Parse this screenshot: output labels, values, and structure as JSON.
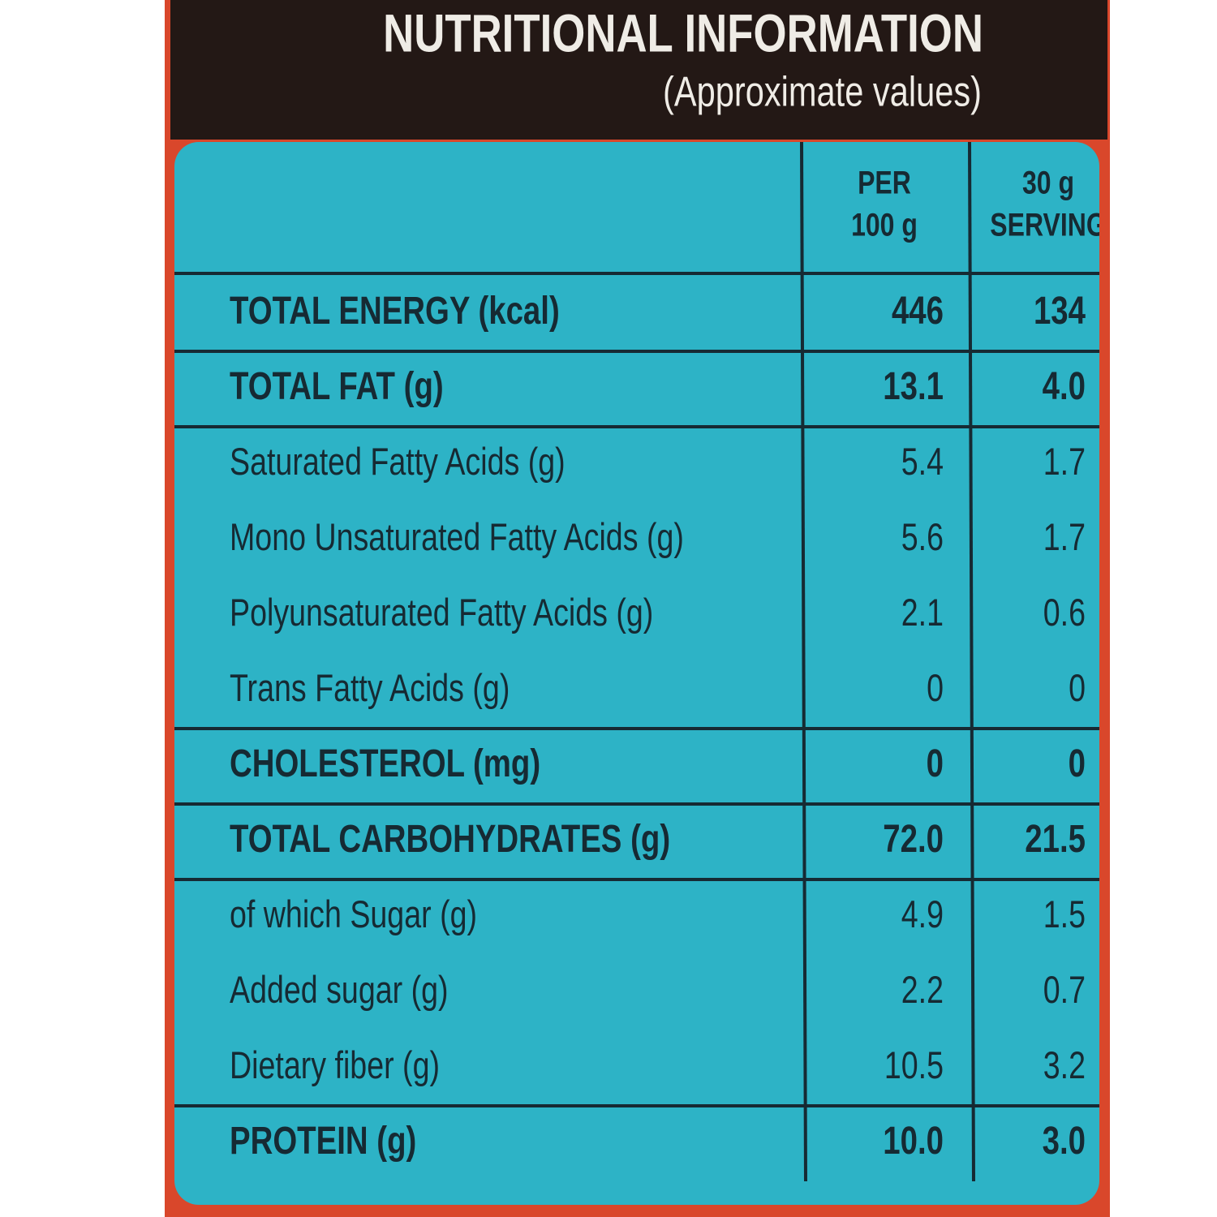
{
  "header": {
    "title": "NUTRITIONAL INFORMATION",
    "subtitle": "(Approximate values)"
  },
  "table": {
    "column_headers": [
      [
        "PER",
        "100 g"
      ],
      [
        "30 g",
        "SERVING"
      ]
    ],
    "groups": [
      [
        {
          "label": "TOTAL ENERGY (kcal)",
          "per_100g": "446",
          "per_serving": "134",
          "bold": true
        }
      ],
      [
        {
          "label": "TOTAL FAT (g)",
          "per_100g": "13.1",
          "per_serving": "4.0",
          "bold": true
        }
      ],
      [
        {
          "label": "Saturated Fatty Acids (g)",
          "per_100g": "5.4",
          "per_serving": "1.7",
          "bold": false
        },
        {
          "label": "Mono Unsaturated Fatty Acids (g)",
          "per_100g": "5.6",
          "per_serving": "1.7",
          "bold": false
        },
        {
          "label": "Polyunsaturated Fatty Acids (g)",
          "per_100g": "2.1",
          "per_serving": "0.6",
          "bold": false
        },
        {
          "label": "Trans Fatty Acids (g)",
          "per_100g": "0",
          "per_serving": "0",
          "bold": false
        }
      ],
      [
        {
          "label": "CHOLESTEROL (mg)",
          "per_100g": "0",
          "per_serving": "0",
          "bold": true
        }
      ],
      [
        {
          "label": "TOTAL CARBOHYDRATES (g)",
          "per_100g": "72.0",
          "per_serving": "21.5",
          "bold": true
        }
      ],
      [
        {
          "label": "of which Sugar (g)",
          "per_100g": "4.9",
          "per_serving": "1.5",
          "bold": false
        },
        {
          "label": "Added sugar (g)",
          "per_100g": "2.2",
          "per_serving": "0.7",
          "bold": false
        },
        {
          "label": "Dietary fiber (g)",
          "per_100g": "10.5",
          "per_serving": "3.2",
          "bold": false
        }
      ],
      [
        {
          "label": "PROTEIN (g)",
          "per_100g": "10.0",
          "per_serving": "3.0",
          "bold": true
        }
      ]
    ]
  }
}
